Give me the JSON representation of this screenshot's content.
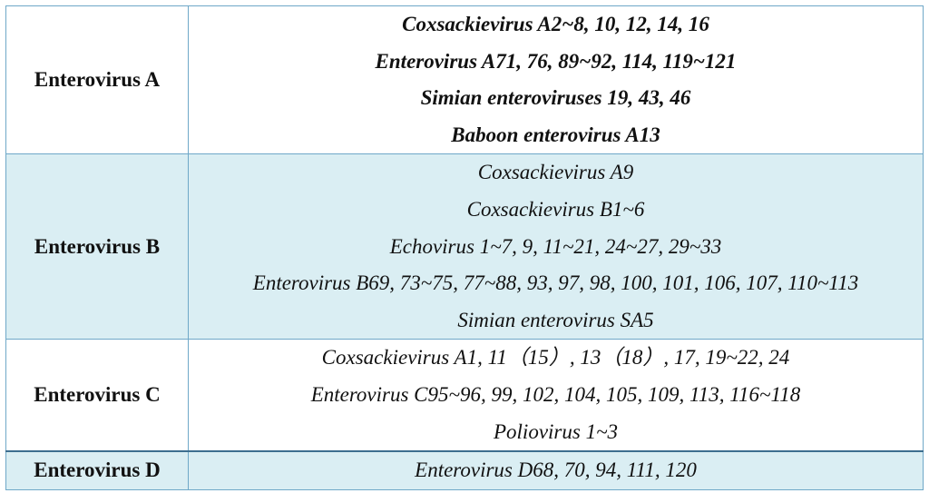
{
  "table": {
    "rows": [
      {
        "group": "Enterovirus A",
        "members": [
          "Coxsackievirus A2~8, 10, 12, 14, 16",
          "Enterovirus A71, 76, 89~92, 114, 119~121",
          "Simian enteroviruses 19, 43, 46",
          "Baboon enterovirus A13"
        ]
      },
      {
        "group": "Enterovirus B",
        "members": [
          "Coxsackievirus A9",
          "Coxsackievirus B1~6",
          "Echovirus 1~7, 9, 11~21, 24~27, 29~33",
          "Enterovirus B69, 73~75, 77~88, 93, 97, 98, 100, 101, 106, 107, 110~113",
          "Simian enterovirus SA5"
        ]
      },
      {
        "group": "Enterovirus C",
        "members": [
          "Coxsackievirus A1, 11（15）, 13（18）, 17, 19~22, 24",
          "Enterovirus C95~96, 99, 102, 104, 105, 109, 113, 116~118",
          "Poliovirus 1~3"
        ]
      },
      {
        "group": "Enterovirus D",
        "members": [
          "Enterovirus D68, 70, 94, 111, 120"
        ]
      }
    ]
  }
}
